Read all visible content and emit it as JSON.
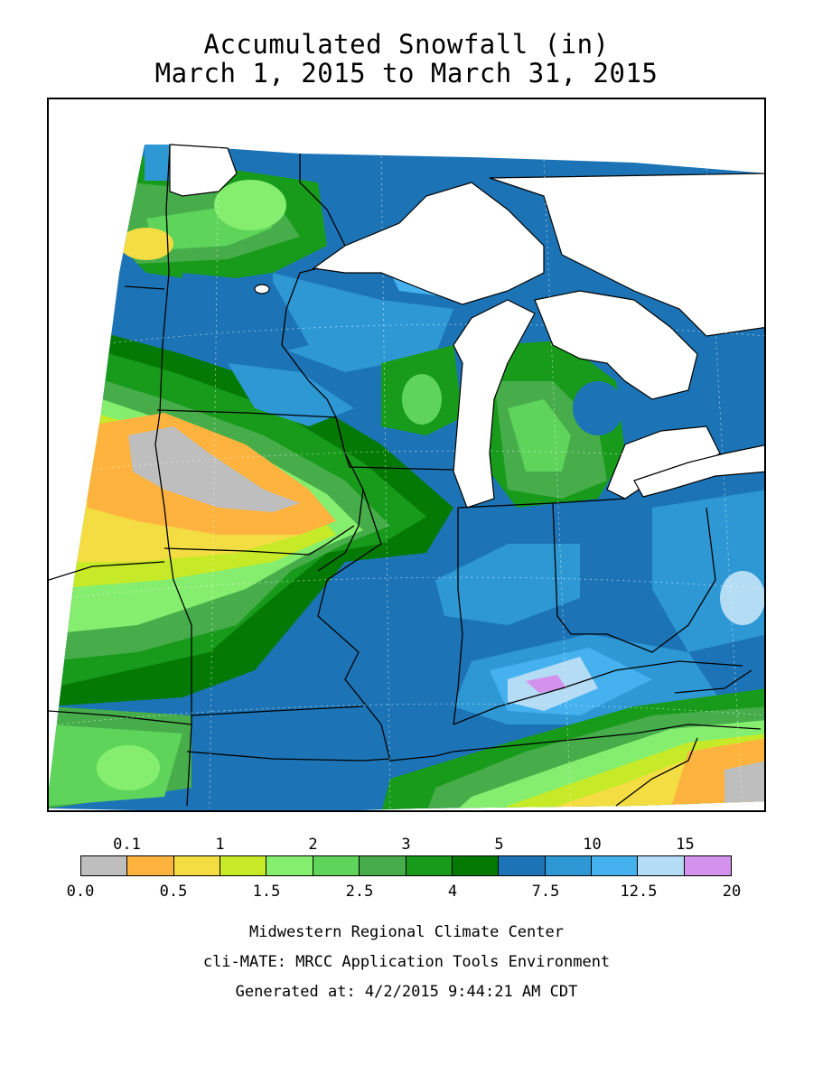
{
  "title_line1": "Accumulated Snowfall (in)",
  "title_line2": "March 1, 2015 to March 31, 2015",
  "legend": {
    "upper_labels": [
      "0.1",
      "1",
      "2",
      "3",
      "5",
      "10",
      "15"
    ],
    "lower_labels": [
      "0.0",
      "0.5",
      "1.5",
      "2.5",
      "4",
      "7.5",
      "12.5",
      "20"
    ],
    "colors": [
      "#bebebe",
      "#fdb33e",
      "#f3dd42",
      "#c6ea27",
      "#86ee6e",
      "#5ed45b",
      "#46ad4a",
      "#189a1a",
      "#047a04",
      "#1c74b6",
      "#2e98d5",
      "#45b1ee",
      "#b5dcf5",
      "#d392ec"
    ]
  },
  "footer": {
    "line1": "Midwestern Regional Climate Center",
    "line2": "cli-MATE: MRCC Application Tools Environment",
    "line3": "Generated at: 4/2/2015 9:44:21 AM CDT"
  }
}
